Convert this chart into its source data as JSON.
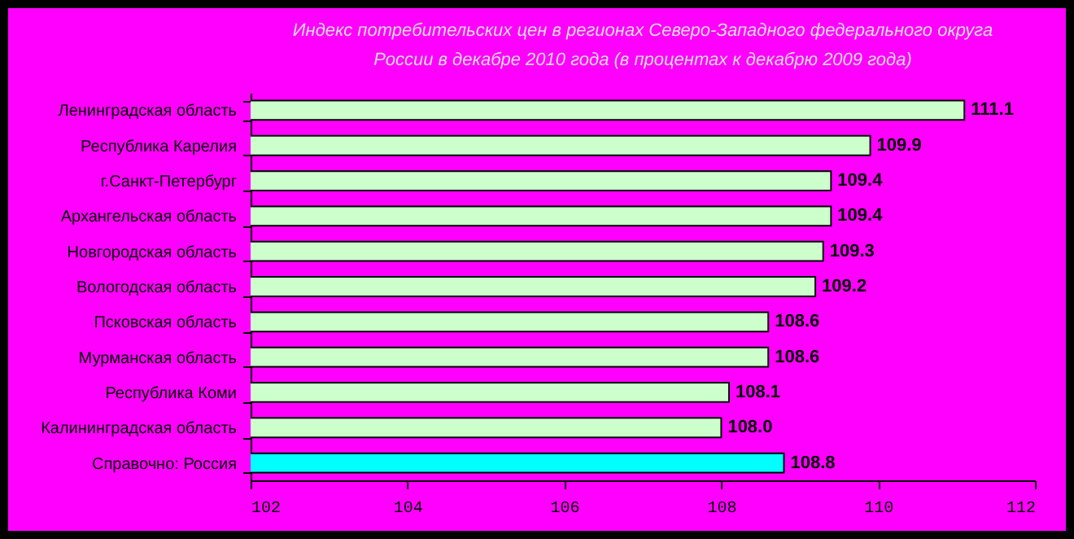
{
  "chart_data": {
    "type": "bar",
    "orientation": "horizontal",
    "title": "Индекс потребительских цен в регионах Северо-Западного федерального округа\nРоссии в декабре 2010 года (в процентах к декабрю 2009 года)",
    "categories": [
      "Ленинградская область",
      "Республика Карелия",
      "г.Санкт-Петербург",
      "Архангельская область",
      "Новгородская область",
      "Вологодская область",
      "Псковская область",
      "Мурманская область",
      "Республика Коми",
      "Калининградская область",
      "Справочно: Россия"
    ],
    "values": [
      111.1,
      109.9,
      109.4,
      109.4,
      109.3,
      109.2,
      108.6,
      108.6,
      108.1,
      108.0,
      108.8
    ],
    "value_labels": [
      "111.1",
      "109.9",
      "109.4",
      "109.4",
      "109.3",
      "109.2",
      "108.6",
      "108.6",
      "108.1",
      "108.0",
      "108.8"
    ],
    "colors": [
      "#ccffcc",
      "#ccffcc",
      "#ccffcc",
      "#ccffcc",
      "#ccffcc",
      "#ccffcc",
      "#ccffcc",
      "#ccffcc",
      "#ccffcc",
      "#ccffcc",
      "#00ffff"
    ],
    "xlim": [
      102,
      112
    ],
    "xticks": [
      102,
      104,
      106,
      108,
      110,
      112
    ],
    "grid": false
  }
}
